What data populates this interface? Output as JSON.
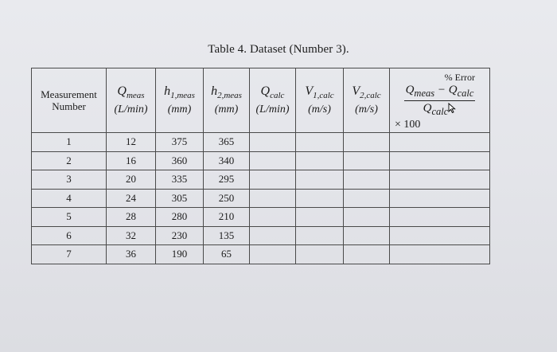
{
  "caption": "Table 4. Dataset (Number 3).",
  "headers": {
    "measurement": [
      "Measurement",
      "Number"
    ],
    "q_meas": {
      "symbol": "Q",
      "sub": "meas",
      "unit": "(L/min)"
    },
    "h1_meas": {
      "symbol": "h",
      "sub": "1,meas",
      "unit": "(mm)"
    },
    "h2_meas": {
      "symbol": "h",
      "sub": "2,meas",
      "unit": "(mm)"
    },
    "q_calc": {
      "symbol": "Q",
      "sub": "calc",
      "unit": "(L/min)"
    },
    "v1_calc": {
      "symbol": "V",
      "sub": "1,calc",
      "unit": "(m/s)"
    },
    "v2_calc": {
      "symbol": "V",
      "sub": "2,calc",
      "unit": "(m/s)"
    },
    "pct_error": {
      "title": "% Error",
      "numerator": "Q",
      "numerator_sub1": "meas",
      "minus": " − ",
      "numerator_sub2": "calc",
      "denominator": "Q",
      "denominator_sub": "calc",
      "factor": "× 100"
    }
  },
  "rows": [
    {
      "n": "1",
      "q": "12",
      "h1": "375",
      "h2": "365",
      "qc": "",
      "v1": "",
      "v2": "",
      "err": ""
    },
    {
      "n": "2",
      "q": "16",
      "h1": "360",
      "h2": "340",
      "qc": "",
      "v1": "",
      "v2": "",
      "err": ""
    },
    {
      "n": "3",
      "q": "20",
      "h1": "335",
      "h2": "295",
      "qc": "",
      "v1": "",
      "v2": "",
      "err": ""
    },
    {
      "n": "4",
      "q": "24",
      "h1": "305",
      "h2": "250",
      "qc": "",
      "v1": "",
      "v2": "",
      "err": ""
    },
    {
      "n": "5",
      "q": "28",
      "h1": "280",
      "h2": "210",
      "qc": "",
      "v1": "",
      "v2": "",
      "err": ""
    },
    {
      "n": "6",
      "q": "32",
      "h1": "230",
      "h2": "135",
      "qc": "",
      "v1": "",
      "v2": "",
      "err": ""
    },
    {
      "n": "7",
      "q": "36",
      "h1": "190",
      "h2": "65",
      "qc": "",
      "v1": "",
      "v2": "",
      "err": ""
    }
  ],
  "icons": {
    "cursor": "mouse-pointer-icon"
  }
}
